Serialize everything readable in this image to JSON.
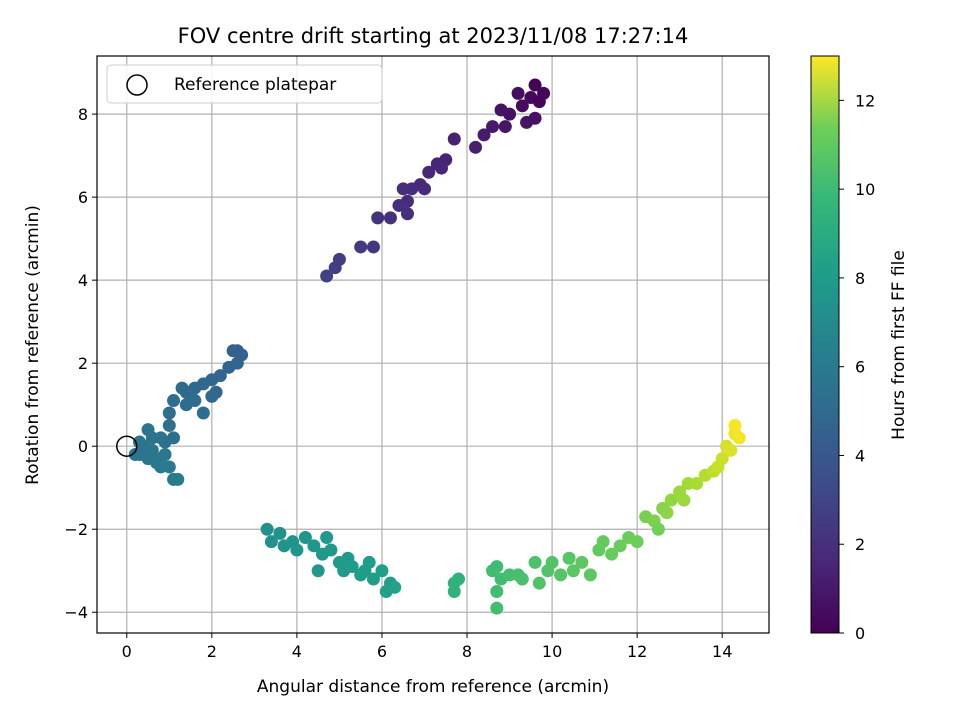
{
  "chart_data": {
    "type": "scatter",
    "title": "FOV centre drift starting at 2023/11/08 17:27:14",
    "xlabel": "Angular distance from reference (arcmin)",
    "ylabel": "Rotation from reference (arcmin)",
    "xlim": [
      -0.7,
      15.1
    ],
    "ylim": [
      -4.5,
      9.4
    ],
    "xticks": [
      0,
      2,
      4,
      6,
      8,
      10,
      12,
      14
    ],
    "yticks": [
      -4,
      -2,
      0,
      2,
      4,
      6,
      8
    ],
    "grid": true,
    "legend": {
      "placement": "top-left",
      "entries": [
        "Reference platepar"
      ]
    },
    "reference_point": {
      "x": 0,
      "y": 0
    },
    "colorbar": {
      "label": "Hours from first FF file",
      "colormap": "viridis",
      "range": [
        0,
        13
      ],
      "ticks": [
        0,
        2,
        4,
        6,
        8,
        10,
        12
      ]
    },
    "points": [
      {
        "x": 9.6,
        "y": 8.7,
        "c": 0.1
      },
      {
        "x": 9.8,
        "y": 8.5,
        "c": 0.2
      },
      {
        "x": 9.5,
        "y": 8.4,
        "c": 0.3
      },
      {
        "x": 9.3,
        "y": 8.2,
        "c": 0.4
      },
      {
        "x": 9.7,
        "y": 8.3,
        "c": 0.2
      },
      {
        "x": 9.0,
        "y": 8.0,
        "c": 0.6
      },
      {
        "x": 9.2,
        "y": 8.5,
        "c": 0.5
      },
      {
        "x": 9.4,
        "y": 7.8,
        "c": 0.7
      },
      {
        "x": 8.9,
        "y": 7.7,
        "c": 0.8
      },
      {
        "x": 9.6,
        "y": 7.9,
        "c": 0.6
      },
      {
        "x": 8.6,
        "y": 7.7,
        "c": 0.9
      },
      {
        "x": 8.4,
        "y": 7.5,
        "c": 1.0
      },
      {
        "x": 8.8,
        "y": 8.1,
        "c": 0.7
      },
      {
        "x": 8.2,
        "y": 7.2,
        "c": 1.1
      },
      {
        "x": 7.7,
        "y": 7.4,
        "c": 1.2
      },
      {
        "x": 7.5,
        "y": 6.9,
        "c": 1.3
      },
      {
        "x": 7.3,
        "y": 6.8,
        "c": 1.3
      },
      {
        "x": 7.1,
        "y": 6.6,
        "c": 1.4
      },
      {
        "x": 7.4,
        "y": 6.7,
        "c": 1.35
      },
      {
        "x": 6.9,
        "y": 6.3,
        "c": 1.5
      },
      {
        "x": 6.7,
        "y": 6.2,
        "c": 1.6
      },
      {
        "x": 6.5,
        "y": 6.2,
        "c": 1.65
      },
      {
        "x": 7.0,
        "y": 6.2,
        "c": 1.55
      },
      {
        "x": 6.6,
        "y": 5.9,
        "c": 1.7
      },
      {
        "x": 6.4,
        "y": 5.8,
        "c": 1.75
      },
      {
        "x": 6.6,
        "y": 5.6,
        "c": 1.8
      },
      {
        "x": 6.2,
        "y": 5.5,
        "c": 1.85
      },
      {
        "x": 5.9,
        "y": 5.5,
        "c": 1.9
      },
      {
        "x": 5.8,
        "y": 4.8,
        "c": 2.1
      },
      {
        "x": 5.5,
        "y": 4.8,
        "c": 2.2
      },
      {
        "x": 5.0,
        "y": 4.5,
        "c": 2.3
      },
      {
        "x": 4.9,
        "y": 4.3,
        "c": 2.4
      },
      {
        "x": 4.7,
        "y": 4.1,
        "c": 2.5
      },
      {
        "x": 2.6,
        "y": 2.3,
        "c": 4.0
      },
      {
        "x": 2.5,
        "y": 2.3,
        "c": 4.05
      },
      {
        "x": 2.7,
        "y": 2.2,
        "c": 4.1
      },
      {
        "x": 2.6,
        "y": 2.0,
        "c": 4.15
      },
      {
        "x": 2.4,
        "y": 1.9,
        "c": 4.2
      },
      {
        "x": 2.2,
        "y": 1.7,
        "c": 4.25
      },
      {
        "x": 2.0,
        "y": 1.6,
        "c": 4.3
      },
      {
        "x": 1.8,
        "y": 1.5,
        "c": 4.35
      },
      {
        "x": 1.6,
        "y": 1.4,
        "c": 4.4
      },
      {
        "x": 1.4,
        "y": 1.3,
        "c": 4.45
      },
      {
        "x": 1.3,
        "y": 1.4,
        "c": 4.5
      },
      {
        "x": 1.5,
        "y": 1.2,
        "c": 4.5
      },
      {
        "x": 1.6,
        "y": 1.1,
        "c": 4.55
      },
      {
        "x": 1.4,
        "y": 1.0,
        "c": 4.6
      },
      {
        "x": 2.1,
        "y": 1.3,
        "c": 4.3
      },
      {
        "x": 2.0,
        "y": 1.2,
        "c": 4.35
      },
      {
        "x": 1.8,
        "y": 0.8,
        "c": 4.6
      },
      {
        "x": 1.1,
        "y": 1.1,
        "c": 4.65
      },
      {
        "x": 1.0,
        "y": 0.8,
        "c": 4.7
      },
      {
        "x": 1.0,
        "y": 0.5,
        "c": 4.75
      },
      {
        "x": 1.1,
        "y": 0.2,
        "c": 4.8
      },
      {
        "x": 0.9,
        "y": 0.1,
        "c": 4.85
      },
      {
        "x": 0.8,
        "y": 0.2,
        "c": 4.9
      },
      {
        "x": 0.6,
        "y": 0.2,
        "c": 4.95
      },
      {
        "x": 0.5,
        "y": 0.4,
        "c": 5.0
      },
      {
        "x": 0.4,
        "y": 0.0,
        "c": 5.0
      },
      {
        "x": 0.3,
        "y": -0.2,
        "c": 5.05
      },
      {
        "x": 0.5,
        "y": -0.3,
        "c": 5.1
      },
      {
        "x": 0.7,
        "y": -0.4,
        "c": 5.15
      },
      {
        "x": 0.6,
        "y": -0.1,
        "c": 5.1
      },
      {
        "x": 0.8,
        "y": -0.3,
        "c": 5.2
      },
      {
        "x": 0.9,
        "y": -0.2,
        "c": 5.2
      },
      {
        "x": 1.0,
        "y": -0.5,
        "c": 5.25
      },
      {
        "x": 0.8,
        "y": -0.5,
        "c": 5.3
      },
      {
        "x": 1.1,
        "y": -0.8,
        "c": 5.35
      },
      {
        "x": 1.2,
        "y": -0.8,
        "c": 5.4
      },
      {
        "x": 0.3,
        "y": 0.1,
        "c": 5.0
      },
      {
        "x": 0.2,
        "y": -0.2,
        "c": 5.05
      },
      {
        "x": 3.3,
        "y": -2.0,
        "c": 6.5
      },
      {
        "x": 3.4,
        "y": -2.3,
        "c": 6.55
      },
      {
        "x": 3.6,
        "y": -2.1,
        "c": 6.6
      },
      {
        "x": 3.7,
        "y": -2.4,
        "c": 6.65
      },
      {
        "x": 3.9,
        "y": -2.3,
        "c": 6.7
      },
      {
        "x": 4.0,
        "y": -2.5,
        "c": 6.75
      },
      {
        "x": 4.2,
        "y": -2.2,
        "c": 6.8
      },
      {
        "x": 4.4,
        "y": -2.4,
        "c": 6.85
      },
      {
        "x": 4.6,
        "y": -2.6,
        "c": 6.9
      },
      {
        "x": 4.7,
        "y": -2.2,
        "c": 6.9
      },
      {
        "x": 4.8,
        "y": -2.5,
        "c": 6.95
      },
      {
        "x": 5.0,
        "y": -2.8,
        "c": 7.0
      },
      {
        "x": 5.1,
        "y": -3.0,
        "c": 7.05
      },
      {
        "x": 5.3,
        "y": -2.9,
        "c": 7.1
      },
      {
        "x": 5.5,
        "y": -3.1,
        "c": 7.15
      },
      {
        "x": 5.7,
        "y": -2.8,
        "c": 7.2
      },
      {
        "x": 5.8,
        "y": -3.2,
        "c": 7.25
      },
      {
        "x": 6.0,
        "y": -3.0,
        "c": 7.3
      },
      {
        "x": 6.2,
        "y": -3.3,
        "c": 7.35
      },
      {
        "x": 6.1,
        "y": -3.5,
        "c": 7.4
      },
      {
        "x": 6.3,
        "y": -3.4,
        "c": 7.45
      },
      {
        "x": 4.5,
        "y": -3.0,
        "c": 6.9
      },
      {
        "x": 5.2,
        "y": -2.7,
        "c": 7.0
      },
      {
        "x": 5.6,
        "y": -3.0,
        "c": 7.15
      },
      {
        "x": 7.7,
        "y": -3.3,
        "c": 8.3
      },
      {
        "x": 7.8,
        "y": -3.2,
        "c": 8.35
      },
      {
        "x": 7.7,
        "y": -3.5,
        "c": 8.4
      },
      {
        "x": 8.7,
        "y": -2.9,
        "c": 8.9
      },
      {
        "x": 8.6,
        "y": -3.0,
        "c": 8.95
      },
      {
        "x": 8.8,
        "y": -3.2,
        "c": 9.0
      },
      {
        "x": 8.7,
        "y": -3.5,
        "c": 9.0
      },
      {
        "x": 8.7,
        "y": -3.9,
        "c": 9.05
      },
      {
        "x": 9.0,
        "y": -3.1,
        "c": 9.1
      },
      {
        "x": 9.2,
        "y": -3.1,
        "c": 9.15
      },
      {
        "x": 9.3,
        "y": -3.2,
        "c": 9.2
      },
      {
        "x": 9.6,
        "y": -2.8,
        "c": 9.3
      },
      {
        "x": 9.7,
        "y": -3.3,
        "c": 9.35
      },
      {
        "x": 9.9,
        "y": -3.0,
        "c": 9.4
      },
      {
        "x": 10.0,
        "y": -2.8,
        "c": 9.45
      },
      {
        "x": 10.2,
        "y": -3.1,
        "c": 9.5
      },
      {
        "x": 10.4,
        "y": -2.7,
        "c": 9.55
      },
      {
        "x": 10.5,
        "y": -3.0,
        "c": 9.6
      },
      {
        "x": 10.7,
        "y": -2.8,
        "c": 9.65
      },
      {
        "x": 10.9,
        "y": -3.1,
        "c": 9.7
      },
      {
        "x": 11.1,
        "y": -2.5,
        "c": 9.8
      },
      {
        "x": 11.2,
        "y": -2.3,
        "c": 9.85
      },
      {
        "x": 11.4,
        "y": -2.6,
        "c": 9.9
      },
      {
        "x": 11.6,
        "y": -2.4,
        "c": 9.95
      },
      {
        "x": 11.8,
        "y": -2.2,
        "c": 10.0
      },
      {
        "x": 12.0,
        "y": -2.3,
        "c": 10.05
      },
      {
        "x": 12.2,
        "y": -1.7,
        "c": 10.3
      },
      {
        "x": 12.4,
        "y": -1.8,
        "c": 10.4
      },
      {
        "x": 12.6,
        "y": -1.5,
        "c": 10.6
      },
      {
        "x": 12.8,
        "y": -1.3,
        "c": 10.8
      },
      {
        "x": 13.0,
        "y": -1.1,
        "c": 11.0
      },
      {
        "x": 13.2,
        "y": -0.9,
        "c": 11.2
      },
      {
        "x": 13.4,
        "y": -0.9,
        "c": 11.3
      },
      {
        "x": 13.6,
        "y": -0.7,
        "c": 11.5
      },
      {
        "x": 13.8,
        "y": -0.6,
        "c": 11.7
      },
      {
        "x": 14.0,
        "y": -0.3,
        "c": 12.0
      },
      {
        "x": 14.1,
        "y": 0.0,
        "c": 12.2
      },
      {
        "x": 14.2,
        "y": -0.1,
        "c": 12.3
      },
      {
        "x": 14.3,
        "y": 0.3,
        "c": 12.6
      },
      {
        "x": 14.4,
        "y": 0.2,
        "c": 12.8
      },
      {
        "x": 14.3,
        "y": 0.5,
        "c": 12.9
      },
      {
        "x": 13.9,
        "y": -0.5,
        "c": 11.9
      },
      {
        "x": 12.7,
        "y": -1.6,
        "c": 10.7
      },
      {
        "x": 13.1,
        "y": -1.3,
        "c": 11.0
      },
      {
        "x": 12.5,
        "y": -2.0,
        "c": 10.2
      }
    ]
  }
}
